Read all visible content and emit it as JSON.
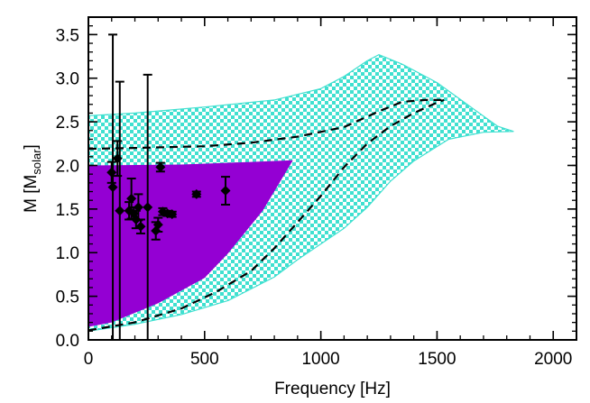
{
  "chart_data": {
    "type": "scatter",
    "xlabel": "Frequency [Hz]",
    "ylabel": {
      "main": "M [M",
      "sub": "solar",
      "end": "]"
    },
    "xlim": [
      0,
      2100
    ],
    "ylim": [
      0,
      3.7
    ],
    "x_ticks": [
      {
        "value": 0,
        "label": "0"
      },
      {
        "value": 500,
        "label": "500"
      },
      {
        "value": 1000,
        "label": "1000"
      },
      {
        "value": 1500,
        "label": "1500"
      },
      {
        "value": 2000,
        "label": "2000"
      }
    ],
    "y_ticks": [
      {
        "value": 0,
        "label": "0.0"
      },
      {
        "value": 0.5,
        "label": "0.5"
      },
      {
        "value": 1,
        "label": "1.0"
      },
      {
        "value": 1.5,
        "label": "1.5"
      },
      {
        "value": 2,
        "label": "2.0"
      },
      {
        "value": 2.5,
        "label": "2.5"
      },
      {
        "value": 3,
        "label": "3.0"
      },
      {
        "value": 3.5,
        "label": "3.5"
      }
    ],
    "grid": false,
    "colors": {
      "checker_a": "#40e0d0",
      "checker_b": "#ffffff",
      "purple": "#9400d3",
      "points": "#000000"
    },
    "cyan_region": [
      [
        0,
        2.57
      ],
      [
        200,
        2.6
      ],
      [
        500,
        2.67
      ],
      [
        800,
        2.75
      ],
      [
        1000,
        2.88
      ],
      [
        1100,
        3.02
      ],
      [
        1200,
        3.2
      ],
      [
        1250,
        3.27
      ],
      [
        1350,
        3.16
      ],
      [
        1500,
        2.95
      ],
      [
        1650,
        2.66
      ],
      [
        1760,
        2.45
      ],
      [
        1830,
        2.39
      ],
      [
        1700,
        2.38
      ],
      [
        1550,
        2.3
      ],
      [
        1400,
        2.05
      ],
      [
        1300,
        1.82
      ],
      [
        1200,
        1.52
      ],
      [
        1100,
        1.28
      ],
      [
        1000,
        1.1
      ],
      [
        900,
        0.92
      ],
      [
        800,
        0.72
      ],
      [
        600,
        0.45
      ],
      [
        400,
        0.29
      ],
      [
        200,
        0.18
      ],
      [
        0,
        0.1
      ]
    ],
    "purple_region": [
      [
        0,
        2.0
      ],
      [
        400,
        2.01
      ],
      [
        700,
        2.04
      ],
      [
        880,
        2.06
      ],
      [
        750,
        1.48
      ],
      [
        600,
        0.99
      ],
      [
        500,
        0.71
      ],
      [
        300,
        0.42
      ],
      [
        100,
        0.2
      ],
      [
        0,
        0.15
      ]
    ],
    "dashed_upper": [
      [
        0,
        2.19
      ],
      [
        200,
        2.2
      ],
      [
        500,
        2.22
      ],
      [
        700,
        2.26
      ],
      [
        900,
        2.33
      ],
      [
        1100,
        2.44
      ],
      [
        1250,
        2.62
      ],
      [
        1350,
        2.73
      ],
      [
        1450,
        2.75
      ],
      [
        1530,
        2.75
      ]
    ],
    "dashed_lower": [
      [
        0,
        0.11
      ],
      [
        200,
        0.2
      ],
      [
        400,
        0.36
      ],
      [
        550,
        0.55
      ],
      [
        700,
        0.79
      ],
      [
        800,
        1.05
      ],
      [
        900,
        1.35
      ],
      [
        1000,
        1.65
      ],
      [
        1100,
        1.98
      ],
      [
        1200,
        2.25
      ],
      [
        1300,
        2.45
      ],
      [
        1400,
        2.6
      ],
      [
        1500,
        2.72
      ],
      [
        1530,
        2.75
      ]
    ],
    "series": [
      {
        "points": [
          {
            "x": 100,
            "y": 1.92,
            "err": 0.12
          },
          {
            "x": 105,
            "y": 1.75,
            "err": 1.75
          },
          {
            "x": 125,
            "y": 2.08,
            "err": 0.2
          },
          {
            "x": 135,
            "y": 1.48,
            "err": 1.48
          },
          {
            "x": 175,
            "y": 1.48,
            "err": 0.1
          },
          {
            "x": 185,
            "y": 1.62,
            "err": 0.23
          },
          {
            "x": 195,
            "y": 1.45,
            "err": 0.07
          },
          {
            "x": 205,
            "y": 1.38,
            "err": 0.1
          },
          {
            "x": 215,
            "y": 1.52,
            "err": 0.15
          },
          {
            "x": 225,
            "y": 1.3,
            "err": 0.08
          },
          {
            "x": 255,
            "y": 1.52,
            "err": 1.52
          },
          {
            "x": 290,
            "y": 1.25,
            "err": 0.1
          },
          {
            "x": 300,
            "y": 1.32,
            "err": 0.08
          },
          {
            "x": 310,
            "y": 1.98,
            "err": 0.05
          },
          {
            "x": 320,
            "y": 1.47,
            "err": 0.04
          },
          {
            "x": 340,
            "y": 1.45,
            "err": 0.03
          },
          {
            "x": 360,
            "y": 1.44,
            "err": 0.03
          },
          {
            "x": 465,
            "y": 1.67,
            "err": 0.03
          },
          {
            "x": 590,
            "y": 1.71,
            "err": 0.16
          }
        ]
      }
    ]
  }
}
